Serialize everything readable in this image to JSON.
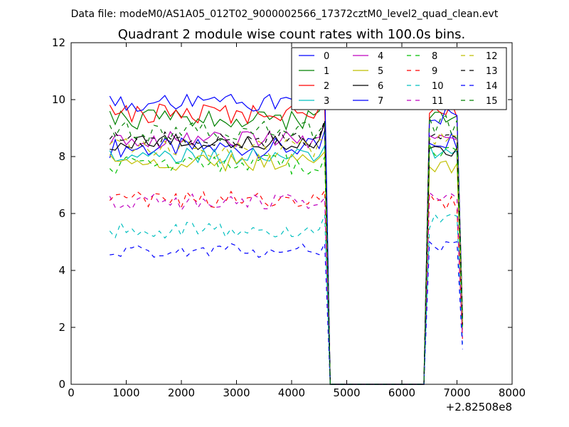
{
  "suptitle": "Data file: modeM0/AS1A05_012T02_9000002566_17372cztM0_level2_quad_clean.evt",
  "chart_data": {
    "type": "line",
    "title": "Quadrant 2 module wise count rates with 100.0s bins.",
    "xlabel": "",
    "ylabel": "",
    "x_offset_label": "+2.82508e8",
    "xlim": [
      0,
      8000
    ],
    "ylim": [
      0,
      12
    ],
    "xticks": [
      0,
      1000,
      2000,
      3000,
      4000,
      5000,
      6000,
      7000,
      8000
    ],
    "yticks": [
      0,
      2,
      4,
      6,
      8,
      10,
      12
    ],
    "grid": false,
    "legend_position": "top-right",
    "legend_columns": 4,
    "x": [
      700,
      800,
      900,
      1000,
      1100,
      1200,
      1300,
      1400,
      1500,
      1600,
      1700,
      1800,
      1900,
      2000,
      2100,
      2200,
      2300,
      2400,
      2500,
      2600,
      2700,
      2800,
      2900,
      3000,
      3100,
      3200,
      3300,
      3400,
      3500,
      3600,
      3700,
      3800,
      3900,
      4000,
      4100,
      4200,
      4300,
      4400,
      4500,
      4600,
      4700,
      4800,
      4900,
      5000,
      5100,
      5200,
      5300,
      5400,
      5500,
      5600,
      5700,
      5800,
      5900,
      6000,
      6100,
      6200,
      6300,
      6400,
      6500,
      6600,
      6700,
      6800,
      6900,
      7000,
      7100
    ],
    "series": [
      {
        "name": "0",
        "color": "#0000ff",
        "dash": false,
        "base": 8.3,
        "noise": 0.35,
        "post": 8.6
      },
      {
        "name": "1",
        "color": "#008000",
        "dash": false,
        "base": 9.3,
        "noise": 0.35,
        "post": 9.4
      },
      {
        "name": "2",
        "color": "#ff0000",
        "dash": false,
        "base": 9.5,
        "noise": 0.35,
        "post": 9.6
      },
      {
        "name": "3",
        "color": "#00bfbf",
        "dash": false,
        "base": 8.0,
        "noise": 0.3,
        "post": 8.2
      },
      {
        "name": "4",
        "color": "#bf00bf",
        "dash": false,
        "base": 8.6,
        "noise": 0.3,
        "post": 8.8
      },
      {
        "name": "5",
        "color": "#bfbf00",
        "dash": false,
        "base": 7.8,
        "noise": 0.3,
        "post": 7.7
      },
      {
        "name": "6",
        "color": "#000000",
        "dash": false,
        "base": 8.5,
        "noise": 0.3,
        "post": 8.3
      },
      {
        "name": "7",
        "color": "#0000ff",
        "dash": false,
        "base": 9.9,
        "noise": 0.35,
        "post": 9.4
      },
      {
        "name": "8",
        "color": "#00bf00",
        "dash": true,
        "base": 7.7,
        "noise": 0.35,
        "post": 8.1
      },
      {
        "name": "9",
        "color": "#ff0000",
        "dash": true,
        "base": 6.5,
        "noise": 0.3,
        "post": 6.4
      },
      {
        "name": "10",
        "color": "#00bfbf",
        "dash": true,
        "base": 5.4,
        "noise": 0.3,
        "post": 5.7
      },
      {
        "name": "11",
        "color": "#bf00bf",
        "dash": true,
        "base": 6.4,
        "noise": 0.3,
        "post": 6.6
      },
      {
        "name": "12",
        "color": "#bfbf00",
        "dash": true,
        "base": 8.3,
        "noise": 0.35,
        "post": 8.7
      },
      {
        "name": "13",
        "color": "#000000",
        "dash": true,
        "base": 8.6,
        "noise": 0.3,
        "post": 8.8
      },
      {
        "name": "14",
        "color": "#0000ff",
        "dash": true,
        "base": 4.7,
        "noise": 0.25,
        "post": 4.9
      },
      {
        "name": "15",
        "color": "#008000",
        "dash": true,
        "base": 8.9,
        "noise": 0.35,
        "post": 9.1
      }
    ],
    "gap_interval": [
      4700,
      6400
    ],
    "rise_x": 4600,
    "pre_gap_peak_scale": 1.05
  }
}
